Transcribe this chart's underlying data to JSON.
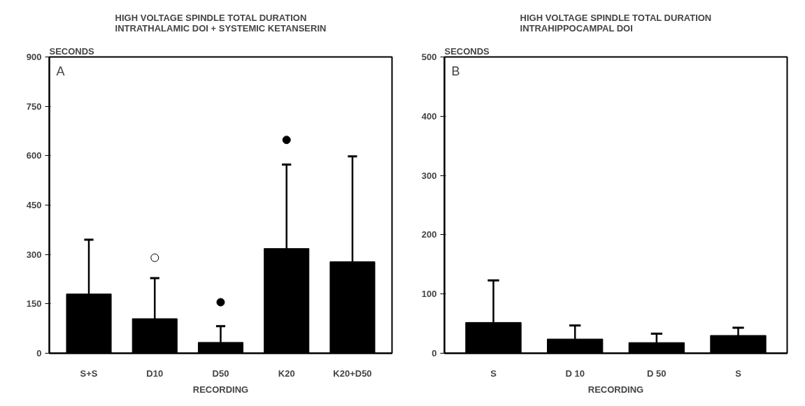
{
  "chart_data": [
    {
      "type": "bar",
      "title": "HIGH VOLTAGE SPINDLE TOTAL DURATION\nINTRATHALAMIC DOI + SYSTEMIC KETANSERIN",
      "xlabel": "RECORDING",
      "ylabel": "SECONDS",
      "categories": [
        "S+S",
        "D10",
        "D50",
        "K20",
        "K20+D50"
      ],
      "series": [
        {
          "color": "#000000",
          "values": [
            180,
            105,
            33,
            318,
            278
          ],
          "errors": [
            165,
            123,
            49,
            255,
            320
          ]
        },
        {
          "type": "scatter",
          "marker": "circle",
          "color": "#ffffff",
          "x": [
            "D10"
          ],
          "values": [
            290
          ]
        },
        {
          "type": "scatter",
          "marker": "circle",
          "color": "#000000",
          "x": [
            "D50",
            "K20"
          ],
          "values": [
            155,
            648
          ]
        }
      ],
      "ylim": [
        0,
        900
      ],
      "yticks": [
        0,
        150,
        300,
        450,
        600,
        750,
        900
      ],
      "grid": false,
      "annotations": [
        "A"
      ]
    },
    {
      "type": "bar",
      "title": "HIGH VOLTAGE SPINDLE TOTAL DURATION\nINTRAHIPPOCAMPAL DOI",
      "xlabel": "RECORDING",
      "ylabel": "SECONDS",
      "categories": [
        "S",
        "D 10",
        "D 50",
        "S"
      ],
      "series": [
        {
          "color": "#000000",
          "values": [
            52,
            24,
            18,
            30
          ],
          "errors": [
            71,
            23,
            15,
            13
          ]
        }
      ],
      "ylim": [
        0,
        500
      ],
      "yticks": [
        0,
        100,
        200,
        300,
        400,
        500
      ],
      "grid": false,
      "annotations": [
        "B"
      ]
    }
  ]
}
